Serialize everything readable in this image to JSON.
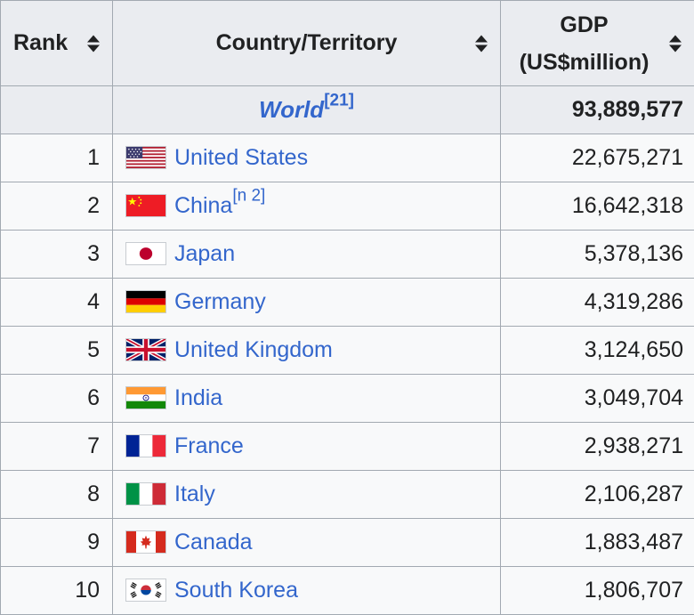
{
  "headers": {
    "rank": "Rank",
    "country": "Country/Territory",
    "gdp_line1": "GDP",
    "gdp_line2": "(US$million)"
  },
  "world": {
    "name": "World",
    "ref": "[21]",
    "gdp": "93,889,577"
  },
  "rows": [
    {
      "rank": "1",
      "country": "United States",
      "ref": "",
      "gdp": "22,675,271",
      "flag": "us-flag-icon"
    },
    {
      "rank": "2",
      "country": "China",
      "ref": "[n 2]",
      "gdp": "16,642,318",
      "flag": "china-flag-icon"
    },
    {
      "rank": "3",
      "country": "Japan",
      "ref": "",
      "gdp": "5,378,136",
      "flag": "japan-flag-icon"
    },
    {
      "rank": "4",
      "country": "Germany",
      "ref": "",
      "gdp": "4,319,286",
      "flag": "germany-flag-icon"
    },
    {
      "rank": "5",
      "country": "United Kingdom",
      "ref": "",
      "gdp": "3,124,650",
      "flag": "uk-flag-icon"
    },
    {
      "rank": "6",
      "country": "India",
      "ref": "",
      "gdp": "3,049,704",
      "flag": "india-flag-icon"
    },
    {
      "rank": "7",
      "country": "France",
      "ref": "",
      "gdp": "2,938,271",
      "flag": "france-flag-icon"
    },
    {
      "rank": "8",
      "country": "Italy",
      "ref": "",
      "gdp": "2,106,287",
      "flag": "italy-flag-icon"
    },
    {
      "rank": "9",
      "country": "Canada",
      "ref": "",
      "gdp": "1,883,487",
      "flag": "canada-flag-icon"
    },
    {
      "rank": "10",
      "country": "South Korea",
      "ref": "",
      "gdp": "1,806,707",
      "flag": "south-korea-flag-icon"
    }
  ],
  "colors": {
    "link": "#3366cc",
    "header_bg": "#eaecf0",
    "border": "#a2a9b1"
  }
}
